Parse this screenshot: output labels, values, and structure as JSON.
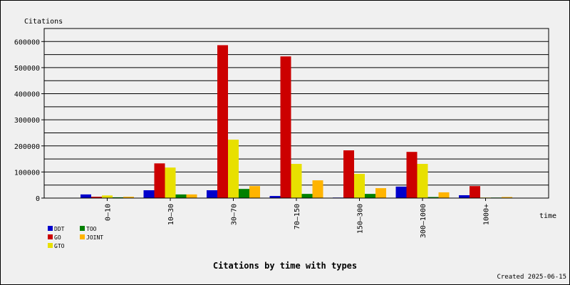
{
  "chart_data": {
    "type": "bar",
    "title": "Citations by time with types",
    "y_label": "Citations",
    "x_label": "time",
    "footer": "Created 2025-06-15",
    "categories": [
      "0–10",
      "10–30",
      "30–70",
      "70–150",
      "150–300",
      "300–1000",
      "1000+"
    ],
    "series": [
      {
        "name": "DDT",
        "color": "#0000cc",
        "values": [
          14000,
          30000,
          30000,
          8000,
          2000,
          44000,
          11000
        ]
      },
      {
        "name": "GO",
        "color": "#cc0000",
        "values": [
          5000,
          133000,
          586000,
          543000,
          183000,
          177000,
          46000
        ]
      },
      {
        "name": "GTO",
        "color": "#e8e000",
        "values": [
          10000,
          117000,
          224000,
          131000,
          93000,
          131000,
          2000
        ]
      },
      {
        "name": "TOO",
        "color": "#008000",
        "values": [
          3000,
          14000,
          35000,
          16000,
          16000,
          4000,
          2000
        ]
      },
      {
        "name": "JOINT",
        "color": "#ffb400",
        "values": [
          5000,
          14000,
          46000,
          68000,
          38000,
          22000,
          4000
        ]
      }
    ],
    "ylim": [
      0,
      650000
    ],
    "yticks": [
      0,
      100000,
      200000,
      300000,
      400000,
      500000,
      600000
    ],
    "grid_lines": [
      50000,
      100000,
      150000,
      200000,
      250000,
      300000,
      350000,
      400000,
      450000,
      500000,
      550000,
      600000
    ],
    "grid": true
  }
}
